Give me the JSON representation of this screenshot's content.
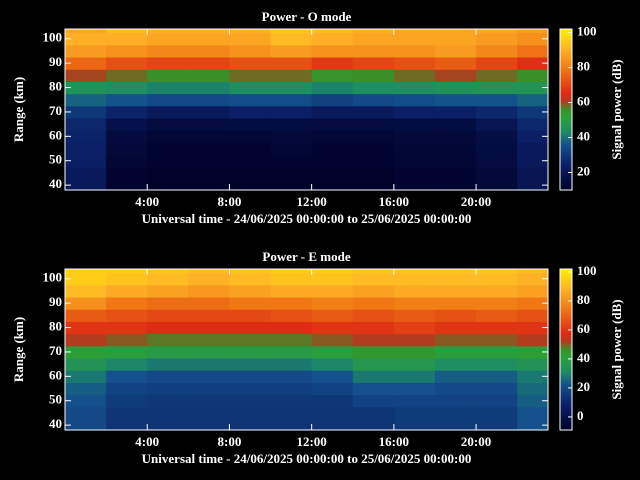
{
  "chart_data": [
    {
      "type": "heatmap",
      "title": "Power - O mode",
      "xlabel": "Universal time - 24/06/2025 00:00:00 to 25/06/2025 00:00:00",
      "ylabel": "Range (km)",
      "colorbar_label": "Signal power (dB)",
      "x": [
        1,
        3,
        5,
        7,
        9,
        11,
        13,
        15,
        17,
        19,
        21,
        23
      ],
      "y": [
        40,
        45,
        50,
        55,
        60,
        65,
        70,
        75,
        80,
        85,
        90,
        95,
        100,
        105
      ],
      "z": [
        [
          22,
          12,
          11,
          11,
          11,
          11,
          11,
          11,
          12,
          12,
          14,
          20
        ],
        [
          22,
          12,
          11,
          11,
          11,
          11,
          11,
          11,
          12,
          12,
          14,
          20
        ],
        [
          24,
          13,
          12,
          12,
          12,
          12,
          12,
          12,
          13,
          13,
          15,
          22
        ],
        [
          24,
          14,
          12,
          12,
          12,
          13,
          12,
          12,
          13,
          13,
          16,
          22
        ],
        [
          25,
          15,
          13,
          13,
          13,
          14,
          13,
          13,
          14,
          14,
          17,
          24
        ],
        [
          26,
          18,
          15,
          15,
          16,
          16,
          15,
          15,
          16,
          16,
          20,
          26
        ],
        [
          30,
          25,
          22,
          22,
          24,
          24,
          22,
          22,
          24,
          24,
          26,
          30
        ],
        [
          38,
          36,
          34,
          34,
          35,
          35,
          32,
          34,
          35,
          36,
          36,
          38
        ],
        [
          45,
          44,
          42,
          42,
          44,
          44,
          42,
          44,
          44,
          45,
          46,
          46
        ],
        [
          60,
          58,
          56,
          56,
          58,
          58,
          55,
          56,
          58,
          60,
          58,
          56
        ],
        [
          76,
          72,
          70,
          70,
          72,
          72,
          68,
          70,
          72,
          74,
          70,
          66
        ],
        [
          86,
          84,
          82,
          82,
          84,
          86,
          84,
          84,
          84,
          86,
          82,
          78
        ],
        [
          90,
          90,
          88,
          88,
          88,
          92,
          90,
          88,
          88,
          88,
          86,
          84
        ],
        [
          88,
          92,
          90,
          90,
          90,
          94,
          92,
          90,
          88,
          88,
          88,
          86
        ]
      ],
      "xlim": [
        0,
        23.5
      ],
      "ylim": [
        38,
        104
      ],
      "clim": [
        10,
        102
      ],
      "xticks": [
        {
          "value": 4,
          "label": "4:00"
        },
        {
          "value": 8,
          "label": "8:00"
        },
        {
          "value": 12,
          "label": "12:00"
        },
        {
          "value": 16,
          "label": "16:00"
        },
        {
          "value": 20,
          "label": "20:00"
        }
      ],
      "yticks": [
        40,
        50,
        60,
        70,
        80,
        90,
        100
      ],
      "cticks": [
        20,
        40,
        60,
        80,
        100
      ],
      "colorscale": [
        [
          0,
          "#000028"
        ],
        [
          0.15,
          "#0a1e64"
        ],
        [
          0.28,
          "#14508c"
        ],
        [
          0.36,
          "#1e8c64"
        ],
        [
          0.45,
          "#2aa03a"
        ],
        [
          0.5,
          "#3a9028"
        ],
        [
          0.55,
          "#b43a1e"
        ],
        [
          0.6,
          "#dc2a14"
        ],
        [
          0.75,
          "#f07814"
        ],
        [
          0.88,
          "#ffb428"
        ],
        [
          1,
          "#fff000"
        ]
      ]
    },
    {
      "type": "heatmap",
      "title": "Power - E mode",
      "xlabel": "Universal time - 24/06/2025 00:00:00 to 25/06/2025 00:00:00",
      "ylabel": "Range (km)",
      "colorbar_label": "Signal power (dB)",
      "x": [
        1,
        3,
        5,
        7,
        9,
        11,
        13,
        15,
        17,
        19,
        21,
        23
      ],
      "y": [
        40,
        45,
        50,
        55,
        60,
        65,
        70,
        75,
        80,
        85,
        90,
        95,
        100,
        105
      ],
      "z": [
        [
          20,
          14,
          14,
          14,
          14,
          14,
          14,
          14,
          16,
          16,
          16,
          22
        ],
        [
          20,
          14,
          14,
          14,
          14,
          14,
          14,
          14,
          16,
          16,
          16,
          22
        ],
        [
          22,
          16,
          15,
          15,
          15,
          15,
          15,
          18,
          18,
          18,
          18,
          24
        ],
        [
          24,
          18,
          17,
          17,
          17,
          17,
          18,
          22,
          22,
          20,
          20,
          26
        ],
        [
          28,
          22,
          20,
          20,
          20,
          20,
          22,
          28,
          28,
          24,
          24,
          28
        ],
        [
          34,
          30,
          28,
          28,
          28,
          28,
          30,
          36,
          36,
          32,
          32,
          34
        ],
        [
          42,
          40,
          38,
          38,
          38,
          38,
          40,
          44,
          44,
          40,
          40,
          42
        ],
        [
          52,
          50,
          48,
          48,
          48,
          48,
          50,
          52,
          52,
          50,
          50,
          52
        ],
        [
          60,
          60,
          58,
          58,
          58,
          58,
          60,
          60,
          62,
          60,
          60,
          60
        ],
        [
          68,
          66,
          64,
          64,
          64,
          66,
          68,
          66,
          68,
          66,
          68,
          66
        ],
        [
          80,
          74,
          72,
          72,
          74,
          74,
          76,
          74,
          76,
          76,
          76,
          74
        ],
        [
          90,
          86,
          84,
          82,
          84,
          86,
          86,
          84,
          86,
          86,
          86,
          84
        ],
        [
          94,
          92,
          90,
          88,
          90,
          92,
          92,
          90,
          90,
          90,
          90,
          88
        ],
        [
          94,
          94,
          92,
          90,
          92,
          94,
          94,
          92,
          92,
          92,
          92,
          90
        ]
      ],
      "xlim": [
        0,
        23.5
      ],
      "ylim": [
        38,
        104
      ],
      "clim": [
        -9,
        102
      ],
      "xticks": [
        {
          "value": 4,
          "label": "4:00"
        },
        {
          "value": 8,
          "label": "8:00"
        },
        {
          "value": 12,
          "label": "12:00"
        },
        {
          "value": 16,
          "label": "16:00"
        },
        {
          "value": 20,
          "label": "20:00"
        }
      ],
      "yticks": [
        40,
        50,
        60,
        70,
        80,
        90,
        100
      ],
      "cticks": [
        0,
        20,
        40,
        60,
        80,
        100
      ],
      "colorscale": [
        [
          0,
          "#000028"
        ],
        [
          0.15,
          "#0a1e64"
        ],
        [
          0.28,
          "#14508c"
        ],
        [
          0.36,
          "#1e8c64"
        ],
        [
          0.45,
          "#2aa03a"
        ],
        [
          0.5,
          "#3a9028"
        ],
        [
          0.55,
          "#b43a1e"
        ],
        [
          0.6,
          "#dc2a14"
        ],
        [
          0.75,
          "#f07814"
        ],
        [
          0.88,
          "#ffb428"
        ],
        [
          1,
          "#fff000"
        ]
      ]
    }
  ]
}
